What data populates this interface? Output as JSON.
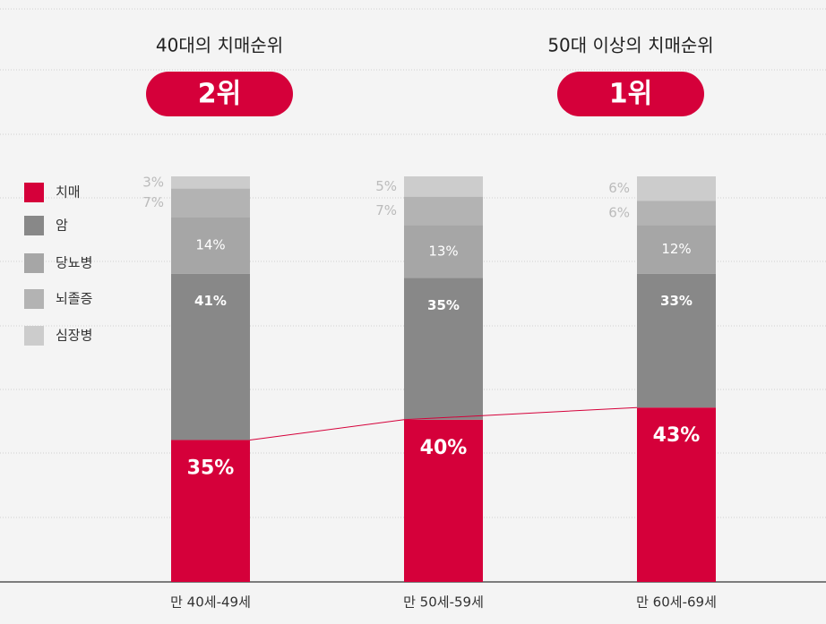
{
  "chart_data": {
    "type": "stacked-bar",
    "categories": [
      "만 40세-49세",
      "만 50세-59세",
      "만 60세-69세"
    ],
    "series": [
      {
        "name": "치매",
        "color": "#d5003a",
        "values": [
          35,
          40,
          43
        ],
        "value_labels": [
          "35%",
          "40%",
          "43%"
        ]
      },
      {
        "name": "암",
        "color": "#888888",
        "values": [
          41,
          35,
          33
        ],
        "value_labels": [
          "41%",
          "35%",
          "33%"
        ]
      },
      {
        "name": "당뇨병",
        "color": "#a6a6a6",
        "values": [
          14,
          13,
          12
        ],
        "value_labels": [
          "14%",
          "13%",
          "12%"
        ]
      },
      {
        "name": "뇌졸증",
        "color": "#b3b3b3",
        "values": [
          7,
          7,
          6
        ],
        "value_labels": [
          "7%",
          "7%",
          "6%"
        ]
      },
      {
        "name": "심장병",
        "color": "#cccccc",
        "values": [
          3,
          5,
          6
        ],
        "value_labels": [
          "3%",
          "5%",
          "6%"
        ]
      }
    ],
    "ylim": [
      0,
      100
    ],
    "annotations": [
      {
        "text": "40대의 치매순위",
        "badge": "2위"
      },
      {
        "text": "50대 이상의 치매순위",
        "badge": "1위"
      }
    ]
  }
}
